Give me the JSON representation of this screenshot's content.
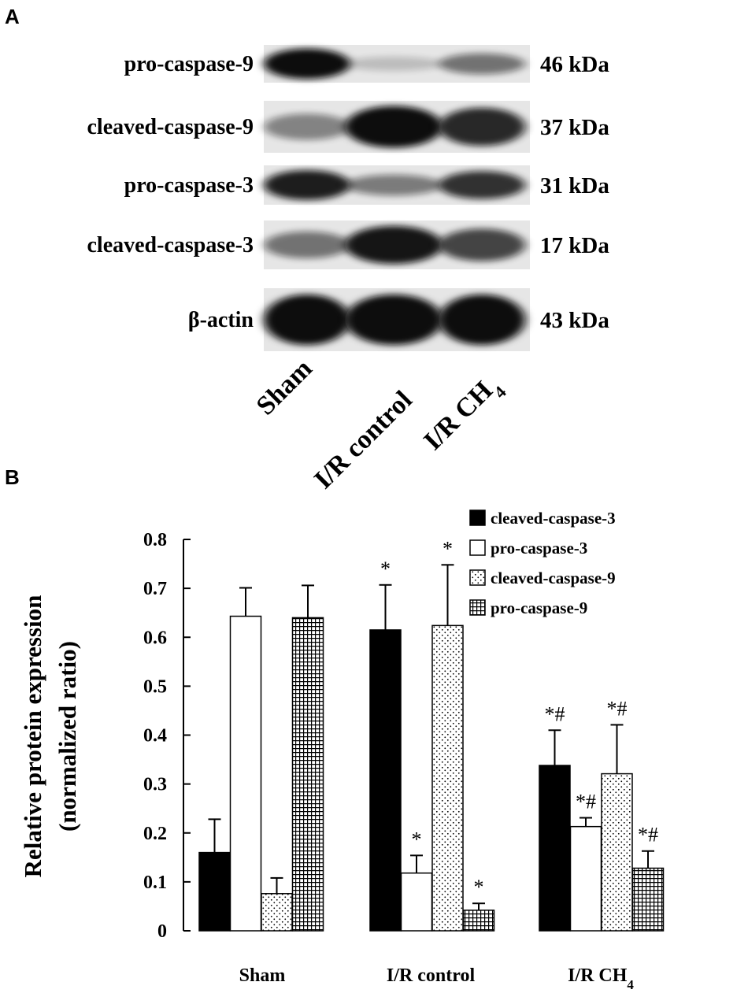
{
  "panel_a": {
    "letter": "A",
    "rows": [
      {
        "label": "pro-caspase-9",
        "kda": "46 kDa",
        "bands": [
          1.0,
          0.05,
          0.45
        ]
      },
      {
        "label": "cleaved-caspase-9",
        "kda": "37 kDa",
        "bands": [
          0.35,
          1.0,
          0.85
        ]
      },
      {
        "label": "pro-caspase-3",
        "kda": "31 kDa",
        "bands": [
          0.9,
          0.4,
          0.8
        ]
      },
      {
        "label": "cleaved-caspase-3",
        "kda": "17 kDa",
        "bands": [
          0.45,
          0.95,
          0.7
        ]
      },
      {
        "label": "β-actin",
        "kda": "43 kDa",
        "bands": [
          1.0,
          1.0,
          1.0
        ]
      }
    ],
    "lanes": [
      {
        "label": "Sham"
      },
      {
        "label": "I/R control"
      },
      {
        "label": "I/R CH",
        "sub": "4"
      }
    ]
  },
  "chart_data": {
    "type": "bar",
    "panel_letter": "B",
    "categories": [
      "Sham",
      "I/R control",
      "I/R  CH"
    ],
    "category_subscripts": [
      "",
      "",
      "4"
    ],
    "ylabel_line1": "Relative protein expression",
    "ylabel_line2": "(normalized ratio)",
    "ylim": [
      0,
      0.8
    ],
    "yticks": [
      "0",
      "0.1",
      "0.2",
      "0.3",
      "0.4",
      "0.5",
      "0.6",
      "0.7",
      "0.8"
    ],
    "grid": false,
    "legend_position": "top-right",
    "series": [
      {
        "name": "cleaved-caspase-3",
        "pattern": "solid",
        "values": [
          0.16,
          0.615,
          0.338
        ],
        "errors": [
          0.068,
          0.092,
          0.072
        ],
        "marks": [
          "",
          "*",
          "*#"
        ]
      },
      {
        "name": "pro-caspase-3",
        "pattern": "open",
        "values": [
          0.643,
          0.118,
          0.213
        ],
        "errors": [
          0.058,
          0.036,
          0.018
        ],
        "marks": [
          "",
          "*",
          "*#"
        ]
      },
      {
        "name": "cleaved-caspase-9",
        "pattern": "dots",
        "values": [
          0.076,
          0.624,
          0.321
        ],
        "errors": [
          0.032,
          0.124,
          0.1
        ],
        "marks": [
          "",
          "*",
          "*#"
        ]
      },
      {
        "name": "pro-caspase-9",
        "pattern": "grid",
        "values": [
          0.64,
          0.042,
          0.128
        ],
        "errors": [
          0.066,
          0.014,
          0.035
        ],
        "marks": [
          "",
          "*",
          "*#"
        ]
      }
    ]
  }
}
